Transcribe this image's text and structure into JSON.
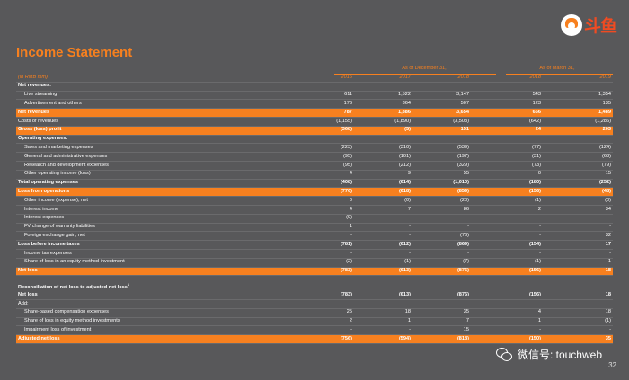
{
  "title": "Income Statement",
  "logo_text": "斗鱼",
  "unit_label": "(in RMB mm)",
  "groups": [
    "As of December 31,",
    "As of March 31,"
  ],
  "years": [
    "2016",
    "2017",
    "2018",
    "2018",
    "2019"
  ],
  "rows": [
    {
      "label": "Net revenues:",
      "vals": [
        "",
        "",
        "",
        "",
        ""
      ],
      "style": "bold"
    },
    {
      "label": "Live streaming",
      "vals": [
        "611",
        "1,522",
        "3,147",
        "543",
        "1,354"
      ],
      "style": "sub"
    },
    {
      "label": "Advertisement and others",
      "vals": [
        "176",
        "364",
        "507",
        "123",
        "135"
      ],
      "style": "sub"
    },
    {
      "label": "Net revenues",
      "vals": [
        "787",
        "1,886",
        "3,654",
        "666",
        "1,489"
      ],
      "style": "hl"
    },
    {
      "label": "Costs of revenues",
      "vals": [
        "(1,155)",
        "(1,890)",
        "(3,503)",
        "(642)",
        "(1,286)"
      ],
      "style": ""
    },
    {
      "label": "Gross (loss) profit",
      "vals": [
        "(368)",
        "(5)",
        "151",
        "24",
        "203"
      ],
      "style": "hl"
    },
    {
      "label": "Operating expenses:",
      "vals": [
        "",
        "",
        "",
        "",
        ""
      ],
      "style": "bold"
    },
    {
      "label": "Sales and marketing expenses",
      "vals": [
        "(223)",
        "(310)",
        "(539)",
        "(77)",
        "(124)"
      ],
      "style": "sub"
    },
    {
      "label": "General and administrative expenses",
      "vals": [
        "(95)",
        "(101)",
        "(197)",
        "(31)",
        "(63)"
      ],
      "style": "sub"
    },
    {
      "label": "Research and development expenses",
      "vals": [
        "(95)",
        "(212)",
        "(329)",
        "(73)",
        "(79)"
      ],
      "style": "sub"
    },
    {
      "label": "Other operating income (loss)",
      "vals": [
        "4",
        "9",
        "55",
        "0",
        "15"
      ],
      "style": "sub"
    },
    {
      "label": "Total operating expenses",
      "vals": [
        "(408)",
        "(614)",
        "(1,010)",
        "(180)",
        "(252)"
      ],
      "style": "bold"
    },
    {
      "label": "Loss from operations",
      "vals": [
        "(776)",
        "(618)",
        "(859)",
        "(156)",
        "(48)"
      ],
      "style": "hl"
    },
    {
      "label": "Other income (expense), net",
      "vals": [
        "0",
        "(0)",
        "(20)",
        "(1)",
        "(0)"
      ],
      "style": "sub"
    },
    {
      "label": "Interest income",
      "vals": [
        "4",
        "7",
        "86",
        "2",
        "34"
      ],
      "style": "sub"
    },
    {
      "label": "Interest expenses",
      "vals": [
        "(9)",
        "-",
        "-",
        "-",
        "-"
      ],
      "style": "sub"
    },
    {
      "label": "FV change of warranty liabilities",
      "vals": [
        "1",
        "-",
        "-",
        "-",
        "-"
      ],
      "style": "sub"
    },
    {
      "label": "Foreign exchange gain, net",
      "vals": [
        "-",
        "-",
        "(76)",
        "-",
        "32"
      ],
      "style": "sub"
    },
    {
      "label": "Loss before income taxes",
      "vals": [
        "(781)",
        "(612)",
        "(869)",
        "(154)",
        "17"
      ],
      "style": "bold"
    },
    {
      "label": "Income tax expenses",
      "vals": [
        "-",
        "-",
        "-",
        "-",
        "-"
      ],
      "style": "sub"
    },
    {
      "label": "Share of loss in an equity method investment",
      "vals": [
        "(2)",
        "(1)",
        "(7)",
        "(1)",
        "1"
      ],
      "style": "sub"
    },
    {
      "label": "Net loss",
      "vals": [
        "(783)",
        "(613)",
        "(876)",
        "(156)",
        "18"
      ],
      "style": "hl"
    }
  ],
  "recon_title": "Reconciliation of net loss to adjusted net loss",
  "recon_sup": "1",
  "recon_rows": [
    {
      "label": "Net loss",
      "vals": [
        "(783)",
        "(613)",
        "(876)",
        "(156)",
        "18"
      ],
      "style": "bold"
    },
    {
      "label": "Add:",
      "vals": [
        "",
        "",
        "",
        "",
        ""
      ],
      "style": ""
    },
    {
      "label": "Share-based compensation expenses",
      "vals": [
        "25",
        "18",
        "35",
        "4",
        "18"
      ],
      "style": "sub"
    },
    {
      "label": "Share of loss in equity method investments",
      "vals": [
        "2",
        "1",
        "7",
        "1",
        "(1)"
      ],
      "style": "sub"
    },
    {
      "label": "Impairment loss of investment",
      "vals": [
        "-",
        "-",
        "15",
        "-",
        "-"
      ],
      "style": "sub"
    },
    {
      "label": "Adjusted net loss",
      "vals": [
        "(756)",
        "(594)",
        "(818)",
        "(150)",
        "35"
      ],
      "style": "hl"
    }
  ],
  "watermark": "微信号: touchweb",
  "page_number": "32"
}
